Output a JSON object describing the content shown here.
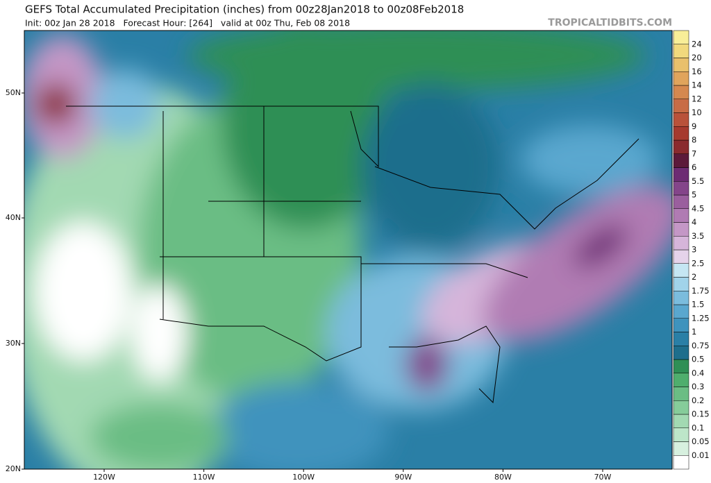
{
  "header": {
    "title": "GEFS Total Accumulated Precipitation (inches) from 00z28Jan2018 to 00z08Feb2018",
    "subtitle": "Init: 00z Jan 28 2018   Forecast Hour: [264]   valid at 00z Thu, Feb 08 2018",
    "site": "TROPICALTIDBITS.COM"
  },
  "map": {
    "lat_labels": [
      "50N",
      "40N",
      "30N",
      "20N"
    ],
    "lon_labels": [
      "120W",
      "110W",
      "100W",
      "90W",
      "80W",
      "70W"
    ]
  },
  "colorbar": {
    "labels": [
      "0.01",
      "0.05",
      "0.1",
      "0.15",
      "0.2",
      "0.3",
      "0.4",
      "0.5",
      "0.75",
      "1",
      "1.25",
      "1.5",
      "1.75",
      "2",
      "2.5",
      "3",
      "3.5",
      "4",
      "4.5",
      "5",
      "5.5",
      "6",
      "7",
      "8",
      "9",
      "10",
      "12",
      "14",
      "16",
      "20",
      "24"
    ],
    "colors": [
      "#ffffff",
      "#d7f0df",
      "#bde6c9",
      "#a2d9b2",
      "#86cc9a",
      "#6bbd84",
      "#4fae6d",
      "#2f8f55",
      "#1e6e8c",
      "#2a7fa6",
      "#3f93bd",
      "#5aa7cf",
      "#7bbcdd",
      "#a1d3ea",
      "#c5e6f3",
      "#e5d3ea",
      "#d6b5da",
      "#c497c6",
      "#b07bb3",
      "#9a5f9e",
      "#84458a",
      "#6d2c73",
      "#5c1a3a",
      "#8a2b2e",
      "#a63a2e",
      "#b9523a",
      "#c86c46",
      "#d5884f",
      "#e0a45c",
      "#e9c06c",
      "#f1d97d",
      "#f8ee98"
    ]
  }
}
